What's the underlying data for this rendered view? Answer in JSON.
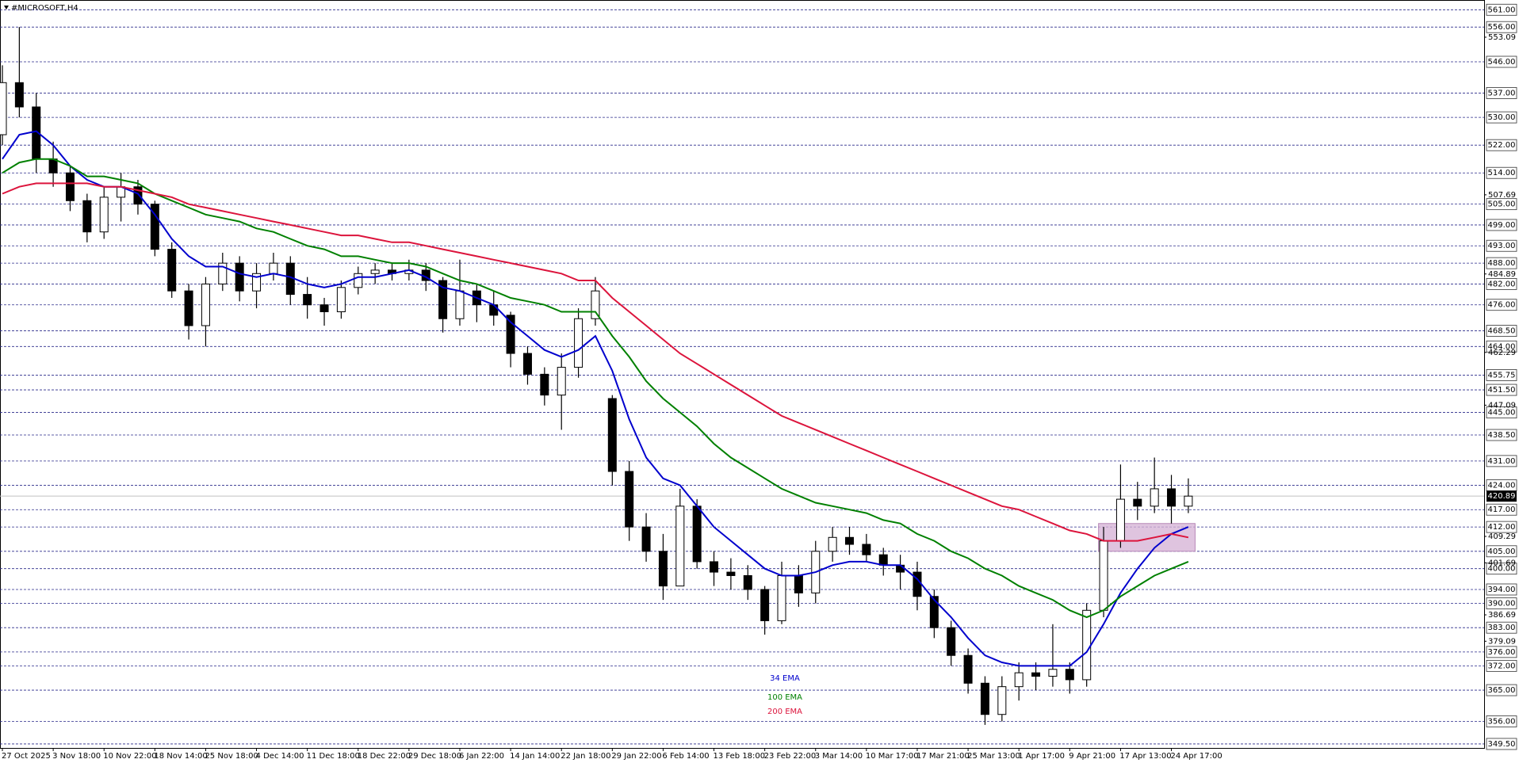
{
  "chart_data": {
    "type": "candlestick",
    "title": "#MICROSOFT,H4",
    "categories": [
      "27 Oct 2025",
      null,
      null,
      "3 Nov 18:00",
      null,
      null,
      "10 Nov 22:00",
      null,
      null,
      "18 Nov 14:00",
      null,
      null,
      "25 Nov 18:00",
      null,
      null,
      "4 Dec 14:00",
      null,
      null,
      "11 Dec 18:00",
      null,
      null,
      "18 Dec 22:00",
      null,
      null,
      "29 Dec 18:00",
      null,
      null,
      "6 Jan 22:00",
      null,
      null,
      "14 Jan 14:00",
      null,
      null,
      "22 Jan 18:00",
      null,
      null,
      "29 Jan 22:00",
      null,
      null,
      "6 Feb 14:00",
      null,
      null,
      "13 Feb 18:00",
      null,
      null,
      "23 Feb 22:00",
      null,
      null,
      "3 Mar 14:00",
      null,
      null,
      "10 Mar 17:00",
      null,
      null,
      "17 Mar 21:00",
      null,
      null,
      "25 Mar 13:00",
      null,
      null,
      "1 Apr 17:00",
      null,
      null,
      "9 Apr 21:00",
      null,
      null,
      "17 Apr 13:00",
      null,
      null,
      "24 Apr 17:00",
      null
    ],
    "open": [
      525,
      540,
      533,
      518,
      514,
      506,
      497,
      507,
      510,
      505,
      492,
      480,
      470,
      482,
      488,
      480,
      485,
      488,
      479,
      476,
      474,
      481,
      485,
      486,
      485,
      486,
      483,
      472,
      480,
      476,
      473,
      462,
      456,
      450,
      458,
      472,
      449,
      428,
      412,
      405,
      395,
      418,
      402,
      399,
      398,
      394,
      385,
      398,
      393,
      405,
      409,
      407,
      404,
      401,
      399,
      392,
      383,
      375,
      367,
      358,
      366,
      370,
      369,
      371,
      368,
      388,
      408,
      420,
      418,
      423,
      418
    ],
    "high": [
      545,
      556,
      537,
      523,
      516,
      508,
      510,
      514,
      512,
      506,
      494,
      482,
      484,
      491,
      490,
      488,
      491,
      490,
      484,
      478,
      483,
      487,
      488,
      488,
      489,
      488,
      484,
      489,
      482,
      480,
      474,
      464,
      458,
      462,
      475,
      484,
      450,
      431,
      416,
      410,
      423,
      420,
      405,
      403,
      401,
      395,
      402,
      401,
      408,
      412,
      412,
      410,
      406,
      404,
      402,
      394,
      385,
      377,
      369,
      369,
      373,
      373,
      384,
      373,
      390,
      412,
      430,
      425,
      432,
      427,
      426
    ],
    "low": [
      522,
      530,
      514,
      510,
      503,
      494,
      495,
      500,
      502,
      490,
      478,
      466,
      464,
      480,
      477,
      475,
      483,
      476,
      472,
      470,
      472,
      479,
      482,
      483,
      483,
      480,
      468,
      470,
      471,
      470,
      458,
      453,
      447,
      440,
      455,
      470,
      424,
      408,
      402,
      391,
      395,
      400,
      395,
      394,
      391,
      381,
      384,
      389,
      390,
      402,
      404,
      402,
      398,
      394,
      388,
      380,
      372,
      364,
      355,
      356,
      362,
      365,
      366,
      364,
      366,
      386,
      406,
      414,
      416,
      413,
      416
    ],
    "close": [
      540,
      533,
      518,
      514,
      506,
      497,
      507,
      510,
      505,
      492,
      480,
      470,
      482,
      488,
      480,
      485,
      488,
      479,
      476,
      474,
      481,
      485,
      486,
      485,
      486,
      483,
      472,
      480,
      476,
      473,
      462,
      456,
      450,
      458,
      472,
      480,
      428,
      412,
      405,
      395,
      418,
      402,
      399,
      398,
      394,
      385,
      398,
      393,
      405,
      409,
      407,
      404,
      401,
      399,
      392,
      383,
      375,
      367,
      358,
      366,
      370,
      369,
      371,
      368,
      388,
      408,
      420,
      418,
      423,
      418,
      420.89
    ],
    "series": [
      {
        "name": "34 EMA",
        "color": "#0000cd",
        "values": [
          518,
          525,
          526,
          522,
          516,
          512,
          510,
          510,
          508,
          502,
          495,
          490,
          487,
          487,
          485,
          484,
          485,
          484,
          482,
          481,
          482,
          484,
          484,
          485,
          486,
          484,
          481,
          480,
          478,
          476,
          471,
          467,
          463,
          461,
          463,
          467,
          457,
          443,
          432,
          426,
          424,
          418,
          412,
          408,
          404,
          400,
          398,
          398,
          399,
          401,
          402,
          402,
          401,
          401,
          397,
          391,
          386,
          380,
          375,
          373,
          372,
          372,
          372,
          372,
          376,
          384,
          393,
          400,
          406,
          410,
          412
        ]
      },
      {
        "name": "100 EMA",
        "color": "#008000",
        "values": [
          514,
          517,
          518,
          518,
          516,
          513,
          513,
          512,
          511,
          508,
          506,
          504,
          502,
          501,
          500,
          498,
          497,
          495,
          493,
          492,
          490,
          490,
          489,
          488,
          488,
          487,
          485,
          483,
          482,
          480,
          478,
          477,
          476,
          474,
          474,
          474,
          467,
          461,
          454,
          449,
          445,
          441,
          436,
          432,
          429,
          426,
          423,
          421,
          419,
          418,
          417,
          416,
          414,
          413,
          410,
          408,
          405,
          403,
          400,
          398,
          395,
          393,
          391,
          388,
          386,
          388,
          392,
          395,
          398,
          400,
          402
        ]
      },
      {
        "name": "200 EMA",
        "color": "#dc143c",
        "values": [
          508,
          510,
          511,
          511,
          511,
          511,
          510,
          510,
          509,
          508,
          507,
          505,
          504,
          503,
          502,
          501,
          500,
          499,
          498,
          497,
          496,
          496,
          495,
          494,
          494,
          493,
          492,
          491,
          490,
          489,
          488,
          487,
          486,
          485,
          483,
          483,
          478,
          474,
          470,
          466,
          462,
          459,
          456,
          453,
          450,
          447,
          444,
          442,
          440,
          438,
          436,
          434,
          432,
          430,
          428,
          426,
          424,
          422,
          420,
          418,
          417,
          415,
          413,
          411,
          410,
          408,
          408,
          408,
          409,
          410,
          409
        ]
      }
    ],
    "ylim": [
      348.35,
      563.35
    ],
    "levels": [
      {
        "value": 561,
        "label": "561.00"
      },
      {
        "value": 556,
        "label": "556.00"
      },
      {
        "value": 546,
        "label": "546.00"
      },
      {
        "value": 537,
        "label": "537.00"
      },
      {
        "value": 530,
        "label": "530.00"
      },
      {
        "value": 522,
        "label": "522.00"
      },
      {
        "value": 514,
        "label": "514.00"
      },
      {
        "value": 505,
        "label": "505.00"
      },
      {
        "value": 499,
        "label": "499.00"
      },
      {
        "value": 493,
        "label": "493.00"
      },
      {
        "value": 488,
        "label": "488.00"
      },
      {
        "value": 482,
        "label": "482.00"
      },
      {
        "value": 476,
        "label": "476.00"
      },
      {
        "value": 468.5,
        "label": "468.50"
      },
      {
        "value": 464,
        "label": "464.00"
      },
      {
        "value": 455.75,
        "label": "455.75"
      },
      {
        "value": 451.5,
        "label": "451.50"
      },
      {
        "value": 445,
        "label": "445.00"
      },
      {
        "value": 438.5,
        "label": "438.50"
      },
      {
        "value": 431,
        "label": "431.00"
      },
      {
        "value": 424,
        "label": "424.00"
      },
      {
        "value": 417,
        "label": "417.00"
      },
      {
        "value": 412,
        "label": "412.00"
      },
      {
        "value": 405,
        "label": "405.00"
      },
      {
        "value": 400,
        "label": "400.00"
      },
      {
        "value": 394,
        "label": "394.00"
      },
      {
        "value": 390,
        "label": "390.00"
      },
      {
        "value": 383,
        "label": "383.00"
      },
      {
        "value": 376,
        "label": "376.00"
      },
      {
        "value": 372,
        "label": "372.00"
      },
      {
        "value": 365,
        "label": "365.00"
      },
      {
        "value": 356,
        "label": "356.00"
      },
      {
        "value": 349.5,
        "label": "349.50"
      }
    ],
    "yticks": [
      553.09,
      507.69,
      484.89,
      462.29,
      447.09,
      409.29,
      401.69,
      386.69,
      379.09
    ],
    "last_price": {
      "value": 420.89,
      "label": "420.89"
    },
    "zone": {
      "from": 64.7,
      "to": 70.4,
      "low": 405,
      "high": 413,
      "color": "#d4b0d4"
    },
    "up_color": "#ffffff",
    "down_color": "#000000"
  }
}
